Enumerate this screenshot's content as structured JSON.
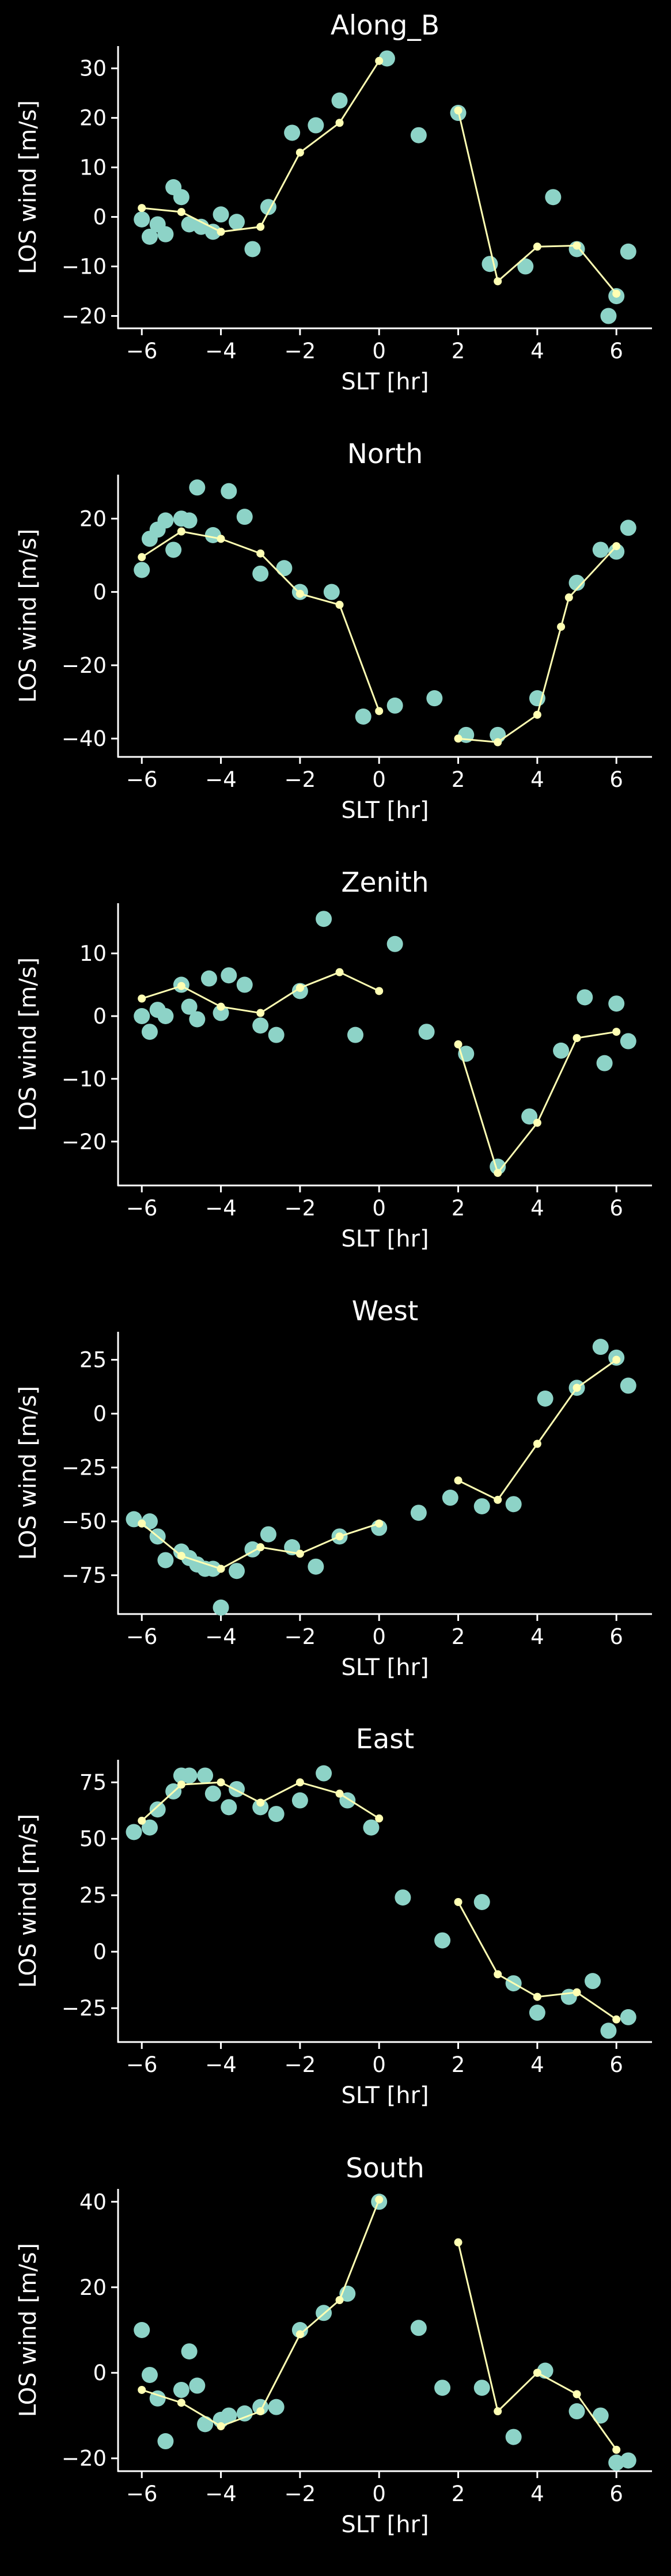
{
  "colors": {
    "background": "#000000",
    "scatter": "#8dd3c7",
    "line": "#ffffb3",
    "axes": "#ffffff"
  },
  "chart_data": [
    {
      "type": "line+scatter",
      "title": "Along_B",
      "xlabel": "SLT [hr]",
      "ylabel": "LOS wind [m/s]",
      "xlim": [
        -6.6,
        6.9
      ],
      "ylim": [
        -22.5,
        34.5
      ],
      "xticks": [
        -6,
        -4,
        -2,
        0,
        2,
        4,
        6
      ],
      "yticks": [
        -20,
        -10,
        0,
        10,
        20,
        30
      ],
      "scatter": [
        [
          -6.0,
          -0.5
        ],
        [
          -5.8,
          -4.0
        ],
        [
          -5.6,
          -1.5
        ],
        [
          -5.4,
          -3.5
        ],
        [
          -5.2,
          6.0
        ],
        [
          -5.0,
          4.0
        ],
        [
          -4.8,
          -1.5
        ],
        [
          -4.5,
          -2.0
        ],
        [
          -4.2,
          -3.0
        ],
        [
          -4.0,
          0.5
        ],
        [
          -3.6,
          -1.0
        ],
        [
          -3.2,
          -6.5
        ],
        [
          -2.8,
          2.0
        ],
        [
          -2.2,
          17.0
        ],
        [
          -1.6,
          18.5
        ],
        [
          -1.0,
          23.5
        ],
        [
          0.2,
          32.0
        ],
        [
          1.0,
          16.5
        ],
        [
          2.0,
          21.0
        ],
        [
          2.8,
          -9.5
        ],
        [
          3.7,
          -10.0
        ],
        [
          4.4,
          4.0
        ],
        [
          5.0,
          -6.5
        ],
        [
          5.8,
          -20.0
        ],
        [
          6.0,
          -16.0
        ],
        [
          6.3,
          -7.0
        ]
      ],
      "segments": [
        [
          [
            -6.0,
            1.8
          ],
          [
            -5.0,
            1.0
          ],
          [
            -4.0,
            -3.0
          ],
          [
            -3.0,
            -2.0
          ],
          [
            -2.0,
            13.0
          ],
          [
            -1.0,
            19.0
          ],
          [
            0.0,
            31.5
          ]
        ],
        [
          [
            2.0,
            21.5
          ],
          [
            3.0,
            -13.0
          ],
          [
            4.0,
            -6.0
          ],
          [
            5.0,
            -5.8
          ],
          [
            6.0,
            -15.5
          ]
        ]
      ]
    },
    {
      "type": "line+scatter",
      "title": "North",
      "xlabel": "SLT [hr]",
      "ylabel": "LOS wind [m/s]",
      "xlim": [
        -6.6,
        6.9
      ],
      "ylim": [
        -45,
        32
      ],
      "xticks": [
        -6,
        -4,
        -2,
        0,
        2,
        4,
        6
      ],
      "yticks": [
        -40,
        -20,
        0,
        20
      ],
      "scatter": [
        [
          -6.0,
          6.0
        ],
        [
          -5.8,
          14.5
        ],
        [
          -5.6,
          17.0
        ],
        [
          -5.4,
          19.5
        ],
        [
          -5.2,
          11.5
        ],
        [
          -5.0,
          20.0
        ],
        [
          -4.8,
          19.5
        ],
        [
          -4.6,
          28.5
        ],
        [
          -4.2,
          15.5
        ],
        [
          -3.8,
          27.5
        ],
        [
          -3.4,
          20.5
        ],
        [
          -3.0,
          5.0
        ],
        [
          -2.4,
          6.5
        ],
        [
          -2.0,
          0.0
        ],
        [
          -1.2,
          0.0
        ],
        [
          -0.4,
          -34.0
        ],
        [
          0.4,
          -31.0
        ],
        [
          1.4,
          -29.0
        ],
        [
          2.2,
          -39.0
        ],
        [
          3.0,
          -39.0
        ],
        [
          4.0,
          -29.0
        ],
        [
          5.0,
          2.5
        ],
        [
          5.6,
          11.5
        ],
        [
          6.0,
          11.0
        ],
        [
          6.3,
          17.5
        ]
      ],
      "segments": [
        [
          [
            -6.0,
            9.5
          ],
          [
            -5.0,
            16.5
          ],
          [
            -4.0,
            14.5
          ],
          [
            -3.0,
            10.5
          ],
          [
            -2.0,
            -0.5
          ],
          [
            -1.0,
            -3.5
          ],
          [
            0.0,
            -32.5
          ]
        ],
        [
          [
            2.0,
            -40.0
          ],
          [
            3.0,
            -41.0
          ],
          [
            4.0,
            -33.5
          ],
          [
            4.6,
            -9.5
          ],
          [
            4.8,
            -1.5
          ],
          [
            6.0,
            12.5
          ]
        ]
      ]
    },
    {
      "type": "line+scatter",
      "title": "Zenith",
      "xlabel": "SLT [hr]",
      "ylabel": "LOS wind [m/s]",
      "xlim": [
        -6.6,
        6.9
      ],
      "ylim": [
        -27,
        18
      ],
      "xticks": [
        -6,
        -4,
        -2,
        0,
        2,
        4,
        6
      ],
      "yticks": [
        -20,
        -10,
        0,
        10
      ],
      "scatter": [
        [
          -6.0,
          0.0
        ],
        [
          -5.8,
          -2.5
        ],
        [
          -5.6,
          1.0
        ],
        [
          -5.4,
          0.0
        ],
        [
          -5.0,
          5.0
        ],
        [
          -4.8,
          1.5
        ],
        [
          -4.6,
          -0.5
        ],
        [
          -4.3,
          6.0
        ],
        [
          -4.0,
          0.5
        ],
        [
          -3.8,
          6.5
        ],
        [
          -3.4,
          5.0
        ],
        [
          -3.0,
          -1.5
        ],
        [
          -2.6,
          -3.0
        ],
        [
          -2.0,
          4.0
        ],
        [
          -1.4,
          15.5
        ],
        [
          -0.6,
          -3.0
        ],
        [
          0.4,
          11.5
        ],
        [
          1.2,
          -2.5
        ],
        [
          2.2,
          -6.0
        ],
        [
          3.0,
          -24.0
        ],
        [
          3.8,
          -16.0
        ],
        [
          4.6,
          -5.5
        ],
        [
          5.2,
          3.0
        ],
        [
          5.7,
          -7.5
        ],
        [
          6.0,
          2.0
        ],
        [
          6.3,
          -4.0
        ]
      ],
      "segments": [
        [
          [
            -6.0,
            2.8
          ],
          [
            -5.0,
            4.8
          ],
          [
            -4.0,
            1.5
          ],
          [
            -3.0,
            0.5
          ],
          [
            -2.0,
            4.5
          ],
          [
            -1.0,
            7.0
          ],
          [
            0.0,
            4.0
          ]
        ],
        [
          [
            2.0,
            -4.5
          ],
          [
            3.0,
            -25.0
          ],
          [
            4.0,
            -17.0
          ],
          [
            5.0,
            -3.5
          ],
          [
            6.0,
            -2.5
          ]
        ]
      ]
    },
    {
      "type": "line+scatter",
      "title": "West",
      "xlabel": "SLT [hr]",
      "ylabel": "LOS wind [m/s]",
      "xlim": [
        -6.6,
        6.9
      ],
      "ylim": [
        -93,
        38
      ],
      "xticks": [
        -6,
        -4,
        -2,
        0,
        2,
        4,
        6
      ],
      "yticks": [
        -75,
        -50,
        -25,
        0,
        25
      ],
      "scatter": [
        [
          -6.2,
          -49.0
        ],
        [
          -5.8,
          -50.0
        ],
        [
          -5.6,
          -57.0
        ],
        [
          -5.4,
          -68.0
        ],
        [
          -5.0,
          -64.0
        ],
        [
          -4.8,
          -67.0
        ],
        [
          -4.6,
          -70.0
        ],
        [
          -4.4,
          -72.0
        ],
        [
          -4.2,
          -72.0
        ],
        [
          -4.0,
          -90.0
        ],
        [
          -3.6,
          -73.0
        ],
        [
          -3.2,
          -63.0
        ],
        [
          -2.8,
          -56.0
        ],
        [
          -2.2,
          -62.0
        ],
        [
          -1.6,
          -71.0
        ],
        [
          -1.0,
          -57.0
        ],
        [
          0.0,
          -53.0
        ],
        [
          1.0,
          -46.0
        ],
        [
          1.8,
          -39.0
        ],
        [
          2.6,
          -43.0
        ],
        [
          3.4,
          -42.0
        ],
        [
          4.2,
          7.0
        ],
        [
          5.0,
          12.0
        ],
        [
          5.6,
          31.0
        ],
        [
          6.0,
          26.0
        ],
        [
          6.3,
          13.0
        ]
      ],
      "segments": [
        [
          [
            -6.0,
            -51.0
          ],
          [
            -5.0,
            -66.0
          ],
          [
            -4.0,
            -72.0
          ],
          [
            -3.0,
            -62.0
          ],
          [
            -2.0,
            -65.0
          ],
          [
            -1.0,
            -57.0
          ],
          [
            0.0,
            -51.0
          ]
        ],
        [
          [
            2.0,
            -31.0
          ],
          [
            3.0,
            -40.0
          ],
          [
            4.0,
            -14.0
          ],
          [
            5.0,
            12.0
          ],
          [
            6.0,
            25.0
          ]
        ]
      ]
    },
    {
      "type": "line+scatter",
      "title": "East",
      "xlabel": "SLT [hr]",
      "ylabel": "LOS wind [m/s]",
      "xlim": [
        -6.6,
        6.9
      ],
      "ylim": [
        -40,
        85
      ],
      "xticks": [
        -6,
        -4,
        -2,
        0,
        2,
        4,
        6
      ],
      "yticks": [
        -25,
        0,
        25,
        50,
        75
      ],
      "scatter": [
        [
          -6.2,
          53.0
        ],
        [
          -5.8,
          55.0
        ],
        [
          -5.6,
          63.0
        ],
        [
          -5.2,
          71.0
        ],
        [
          -5.0,
          78.0
        ],
        [
          -4.8,
          78.0
        ],
        [
          -4.4,
          78.0
        ],
        [
          -4.2,
          70.0
        ],
        [
          -3.8,
          64.0
        ],
        [
          -3.6,
          72.0
        ],
        [
          -3.0,
          64.0
        ],
        [
          -2.6,
          61.0
        ],
        [
          -2.0,
          67.0
        ],
        [
          -1.4,
          79.0
        ],
        [
          -0.8,
          67.0
        ],
        [
          -0.2,
          55.0
        ],
        [
          0.6,
          24.0
        ],
        [
          1.6,
          5.0
        ],
        [
          2.6,
          22.0
        ],
        [
          3.4,
          -14.0
        ],
        [
          4.0,
          -27.0
        ],
        [
          4.8,
          -20.0
        ],
        [
          5.4,
          -13.0
        ],
        [
          5.8,
          -35.0
        ],
        [
          6.3,
          -29.0
        ]
      ],
      "segments": [
        [
          [
            -6.0,
            58.0
          ],
          [
            -5.0,
            74.0
          ],
          [
            -4.0,
            75.0
          ],
          [
            -3.0,
            66.0
          ],
          [
            -2.0,
            75.0
          ],
          [
            -1.0,
            70.0
          ],
          [
            0.0,
            59.0
          ]
        ],
        [
          [
            2.0,
            22.0
          ],
          [
            3.0,
            -10.0
          ],
          [
            4.0,
            -20.0
          ],
          [
            5.0,
            -18.0
          ],
          [
            6.0,
            -30.0
          ]
        ]
      ]
    },
    {
      "type": "line+scatter",
      "title": "South",
      "xlabel": "SLT [hr]",
      "ylabel": "LOS wind [m/s]",
      "xlim": [
        -6.6,
        6.9
      ],
      "ylim": [
        -23,
        43
      ],
      "xticks": [
        -6,
        -4,
        -2,
        0,
        2,
        4,
        6
      ],
      "yticks": [
        -20,
        0,
        20,
        40
      ],
      "scatter": [
        [
          -6.0,
          10.0
        ],
        [
          -5.8,
          -0.5
        ],
        [
          -5.6,
          -6.0
        ],
        [
          -5.4,
          -16.0
        ],
        [
          -5.0,
          -4.0
        ],
        [
          -4.8,
          5.0
        ],
        [
          -4.6,
          -3.0
        ],
        [
          -4.4,
          -12.0
        ],
        [
          -4.0,
          -11.0
        ],
        [
          -3.8,
          -10.0
        ],
        [
          -3.4,
          -9.5
        ],
        [
          -3.0,
          -8.0
        ],
        [
          -2.6,
          -8.0
        ],
        [
          -2.0,
          10.0
        ],
        [
          -1.4,
          14.0
        ],
        [
          -0.8,
          18.5
        ],
        [
          0.0,
          40.0
        ],
        [
          1.0,
          10.5
        ],
        [
          1.6,
          -3.5
        ],
        [
          2.6,
          -3.5
        ],
        [
          3.4,
          -15.0
        ],
        [
          4.2,
          0.5
        ],
        [
          5.0,
          -9.0
        ],
        [
          5.6,
          -10.0
        ],
        [
          6.0,
          -21.0
        ],
        [
          6.3,
          -20.5
        ]
      ],
      "segments": [
        [
          [
            -6.0,
            -4.0
          ],
          [
            -5.0,
            -7.0
          ],
          [
            -4.0,
            -12.5
          ],
          [
            -3.0,
            -9.0
          ],
          [
            -2.0,
            9.0
          ],
          [
            -1.0,
            17.0
          ],
          [
            0.0,
            40.5
          ]
        ],
        [
          [
            2.0,
            30.5
          ],
          [
            3.0,
            -9.0
          ],
          [
            4.0,
            0.0
          ],
          [
            5.0,
            -5.0
          ],
          [
            6.0,
            -18.0
          ]
        ]
      ]
    }
  ]
}
